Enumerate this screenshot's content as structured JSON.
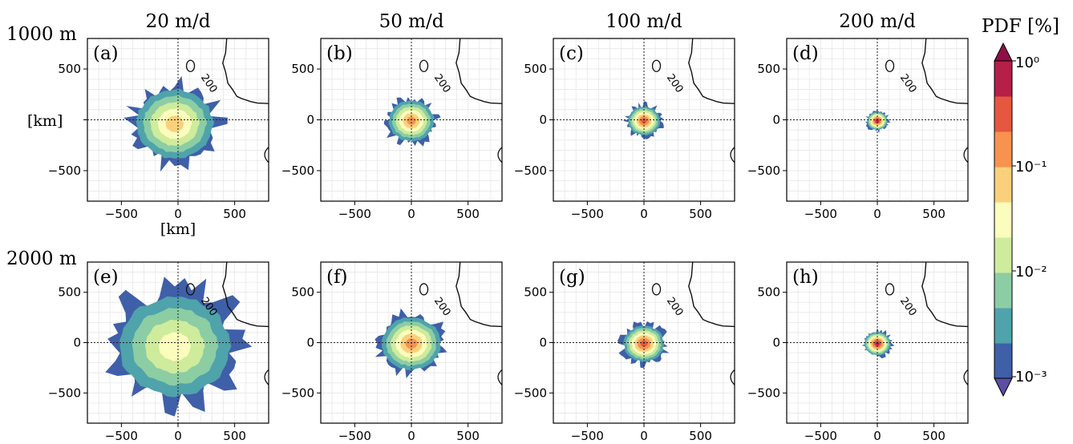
{
  "chart_data": {
    "type": "heatmap",
    "column_titles": [
      "20 m/d",
      "50 m/d",
      "100 m/d",
      "200 m/d"
    ],
    "row_titles": [
      "1000 m",
      "2000 m"
    ],
    "panel_labels": [
      "(a)",
      "(b)",
      "(c)",
      "(d)",
      "(e)",
      "(f)",
      "(g)",
      "(h)"
    ],
    "axis_unit_label": "[km]",
    "axis_range": [
      -800,
      800
    ],
    "ticks": [
      -500,
      0,
      500
    ],
    "tick_labels": [
      "−500",
      "0",
      "500"
    ],
    "contour_label": "200",
    "grid": true,
    "colorbar": {
      "title": "PDF [%]",
      "scale": "log",
      "range": [
        0.001,
        1
      ],
      "tick_labels": [
        "10⁰",
        "10⁻¹",
        "10⁻²",
        "10⁻³"
      ],
      "tick_values": [
        1,
        0.1,
        0.01,
        0.001
      ],
      "extend": "both",
      "colors": [
        "#3f5fa8",
        "#4fa3ab",
        "#8ccda4",
        "#cfeb9c",
        "#fbfdbc",
        "#fbd07c",
        "#f7924f",
        "#e5573f",
        "#b51f48"
      ]
    },
    "panels": [
      {
        "label": "(a)",
        "depth": "1000 m",
        "speed": "20 m/d",
        "extent_km": 400,
        "peak_level": 6
      },
      {
        "label": "(b)",
        "depth": "1000 m",
        "speed": "50 m/d",
        "extent_km": 230,
        "peak_level": 7
      },
      {
        "label": "(c)",
        "depth": "1000 m",
        "speed": "100 m/d",
        "extent_km": 160,
        "peak_level": 8
      },
      {
        "label": "(d)",
        "depth": "1000 m",
        "speed": "200 m/d",
        "extent_km": 100,
        "peak_level": 9
      },
      {
        "label": "(e)",
        "depth": "2000 m",
        "speed": "20 m/d",
        "extent_km": 600,
        "peak_level": 5
      },
      {
        "label": "(f)",
        "depth": "2000 m",
        "speed": "50 m/d",
        "extent_km": 300,
        "peak_level": 7
      },
      {
        "label": "(g)",
        "depth": "2000 m",
        "speed": "100 m/d",
        "extent_km": 200,
        "peak_level": 8
      },
      {
        "label": "(h)",
        "depth": "2000 m",
        "speed": "200 m/d",
        "extent_km": 130,
        "peak_level": 9
      }
    ]
  }
}
